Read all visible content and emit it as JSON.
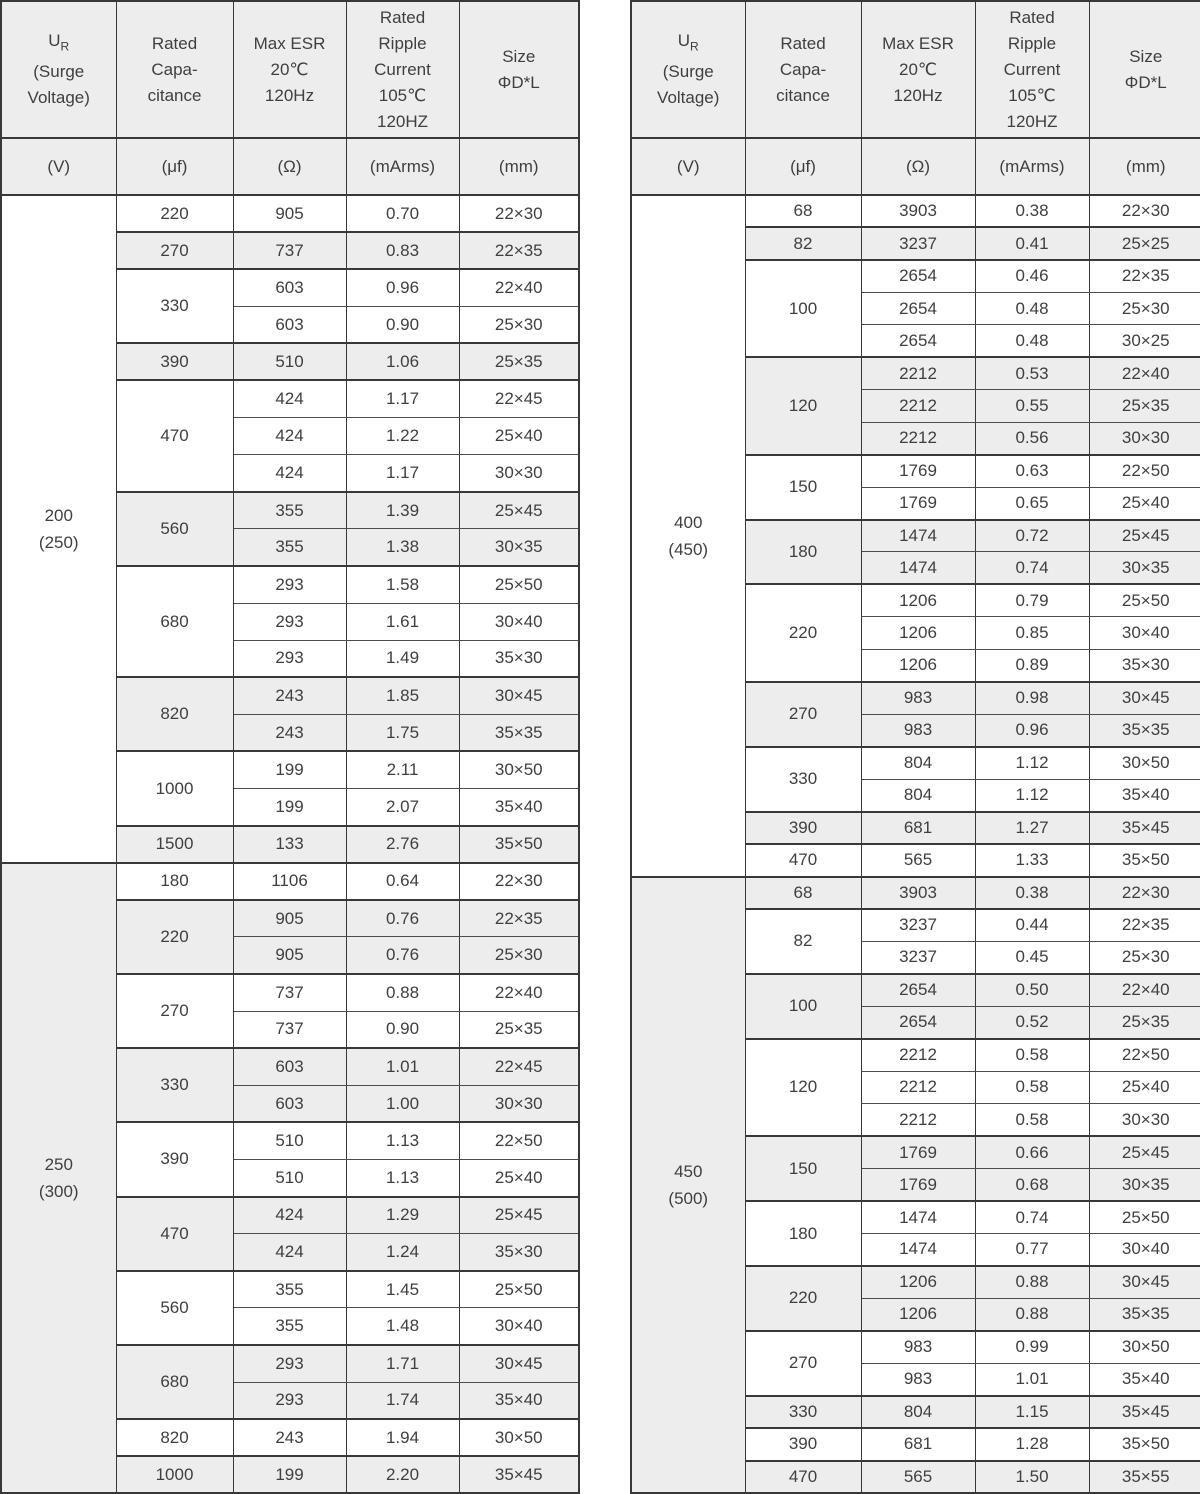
{
  "colors": {
    "stripe": "#ededed",
    "header_bg": "#ededed",
    "border": "#383838",
    "text": "#3f3f3f",
    "row_bg": "#ffffff"
  },
  "columns": [
    {
      "title_rich": {
        "main": "U",
        "sub": "R"
      },
      "title_lines": [
        "(Surge",
        "Voltage)"
      ],
      "unit": "(V)"
    },
    {
      "title_lines": [
        "Rated",
        "Capa-",
        "citance"
      ],
      "unit": "(μf)"
    },
    {
      "title_lines": [
        "Max ESR",
        "20℃",
        "120Hz"
      ],
      "unit": "(Ω)"
    },
    {
      "title_lines": [
        "Rated",
        "Ripple",
        "Current",
        "105℃",
        "120HZ"
      ],
      "unit": "(mArms)"
    },
    {
      "title_lines": [
        "Size",
        "ΦD*L"
      ],
      "unit": "(mm)"
    }
  ],
  "tables": [
    {
      "id": "left",
      "sections": [
        {
          "voltage": "200",
          "surge": "(250)",
          "groups": [
            {
              "cap": "220",
              "rows": [
                {
                  "esr": "905",
                  "ripple": "0.70",
                  "size": "22×30"
                }
              ]
            },
            {
              "cap": "270",
              "rows": [
                {
                  "esr": "737",
                  "ripple": "0.83",
                  "size": "22×35"
                }
              ]
            },
            {
              "cap": "330",
              "rows": [
                {
                  "esr": "603",
                  "ripple": "0.96",
                  "size": "22×40"
                },
                {
                  "esr": "603",
                  "ripple": "0.90",
                  "size": "25×30"
                }
              ]
            },
            {
              "cap": "390",
              "rows": [
                {
                  "esr": "510",
                  "ripple": "1.06",
                  "size": "25×35"
                }
              ]
            },
            {
              "cap": "470",
              "rows": [
                {
                  "esr": "424",
                  "ripple": "1.17",
                  "size": "22×45"
                },
                {
                  "esr": "424",
                  "ripple": "1.22",
                  "size": "25×40"
                },
                {
                  "esr": "424",
                  "ripple": "1.17",
                  "size": "30×30"
                }
              ]
            },
            {
              "cap": "560",
              "rows": [
                {
                  "esr": "355",
                  "ripple": "1.39",
                  "size": "25×45"
                },
                {
                  "esr": "355",
                  "ripple": "1.38",
                  "size": "30×35"
                }
              ]
            },
            {
              "cap": "680",
              "rows": [
                {
                  "esr": "293",
                  "ripple": "1.58",
                  "size": "25×50"
                },
                {
                  "esr": "293",
                  "ripple": "1.61",
                  "size": "30×40"
                },
                {
                  "esr": "293",
                  "ripple": "1.49",
                  "size": "35×30"
                }
              ]
            },
            {
              "cap": "820",
              "rows": [
                {
                  "esr": "243",
                  "ripple": "1.85",
                  "size": "30×45"
                },
                {
                  "esr": "243",
                  "ripple": "1.75",
                  "size": "35×35"
                }
              ]
            },
            {
              "cap": "1000",
              "rows": [
                {
                  "esr": "199",
                  "ripple": "2.11",
                  "size": "30×50"
                },
                {
                  "esr": "199",
                  "ripple": "2.07",
                  "size": "35×40"
                }
              ]
            },
            {
              "cap": "1500",
              "rows": [
                {
                  "esr": "133",
                  "ripple": "2.76",
                  "size": "35×50"
                }
              ]
            }
          ]
        },
        {
          "voltage": "250",
          "surge": "(300)",
          "groups": [
            {
              "cap": "180",
              "rows": [
                {
                  "esr": "1106",
                  "ripple": "0.64",
                  "size": "22×30"
                }
              ]
            },
            {
              "cap": "220",
              "rows": [
                {
                  "esr": "905",
                  "ripple": "0.76",
                  "size": "22×35"
                },
                {
                  "esr": "905",
                  "ripple": "0.76",
                  "size": "25×30"
                }
              ]
            },
            {
              "cap": "270",
              "rows": [
                {
                  "esr": "737",
                  "ripple": "0.88",
                  "size": "22×40"
                },
                {
                  "esr": "737",
                  "ripple": "0.90",
                  "size": "25×35"
                }
              ]
            },
            {
              "cap": "330",
              "rows": [
                {
                  "esr": "603",
                  "ripple": "1.01",
                  "size": "22×45"
                },
                {
                  "esr": "603",
                  "ripple": "1.00",
                  "size": "30×30"
                }
              ]
            },
            {
              "cap": "390",
              "rows": [
                {
                  "esr": "510",
                  "ripple": "1.13",
                  "size": "22×50"
                },
                {
                  "esr": "510",
                  "ripple": "1.13",
                  "size": "25×40"
                }
              ]
            },
            {
              "cap": "470",
              "rows": [
                {
                  "esr": "424",
                  "ripple": "1.29",
                  "size": "25×45"
                },
                {
                  "esr": "424",
                  "ripple": "1.24",
                  "size": "35×30"
                }
              ]
            },
            {
              "cap": "560",
              "rows": [
                {
                  "esr": "355",
                  "ripple": "1.45",
                  "size": "25×50"
                },
                {
                  "esr": "355",
                  "ripple": "1.48",
                  "size": "30×40"
                }
              ]
            },
            {
              "cap": "680",
              "rows": [
                {
                  "esr": "293",
                  "ripple": "1.71",
                  "size": "30×45"
                },
                {
                  "esr": "293",
                  "ripple": "1.74",
                  "size": "35×40"
                }
              ]
            },
            {
              "cap": "820",
              "rows": [
                {
                  "esr": "243",
                  "ripple": "1.94",
                  "size": "30×50"
                }
              ]
            },
            {
              "cap": "1000",
              "rows": [
                {
                  "esr": "199",
                  "ripple": "2.20",
                  "size": "35×45"
                }
              ]
            }
          ]
        }
      ]
    },
    {
      "id": "right",
      "sections": [
        {
          "voltage": "400",
          "surge": "(450)",
          "groups": [
            {
              "cap": "68",
              "rows": [
                {
                  "esr": "3903",
                  "ripple": "0.38",
                  "size": "22×30"
                }
              ]
            },
            {
              "cap": "82",
              "rows": [
                {
                  "esr": "3237",
                  "ripple": "0.41",
                  "size": "25×25"
                }
              ]
            },
            {
              "cap": "100",
              "rows": [
                {
                  "esr": "2654",
                  "ripple": "0.46",
                  "size": "22×35"
                },
                {
                  "esr": "2654",
                  "ripple": "0.48",
                  "size": "25×30"
                },
                {
                  "esr": "2654",
                  "ripple": "0.48",
                  "size": "30×25"
                }
              ]
            },
            {
              "cap": "120",
              "rows": [
                {
                  "esr": "2212",
                  "ripple": "0.53",
                  "size": "22×40"
                },
                {
                  "esr": "2212",
                  "ripple": "0.55",
                  "size": "25×35"
                },
                {
                  "esr": "2212",
                  "ripple": "0.56",
                  "size": "30×30"
                }
              ]
            },
            {
              "cap": "150",
              "rows": [
                {
                  "esr": "1769",
                  "ripple": "0.63",
                  "size": "22×50"
                },
                {
                  "esr": "1769",
                  "ripple": "0.65",
                  "size": "25×40"
                }
              ]
            },
            {
              "cap": "180",
              "rows": [
                {
                  "esr": "1474",
                  "ripple": "0.72",
                  "size": "25×45"
                },
                {
                  "esr": "1474",
                  "ripple": "0.74",
                  "size": "30×35"
                }
              ]
            },
            {
              "cap": "220",
              "rows": [
                {
                  "esr": "1206",
                  "ripple": "0.79",
                  "size": "25×50"
                },
                {
                  "esr": "1206",
                  "ripple": "0.85",
                  "size": "30×40"
                },
                {
                  "esr": "1206",
                  "ripple": "0.89",
                  "size": "35×30"
                }
              ]
            },
            {
              "cap": "270",
              "rows": [
                {
                  "esr": "983",
                  "ripple": "0.98",
                  "size": "30×45"
                },
                {
                  "esr": "983",
                  "ripple": "0.96",
                  "size": "35×35"
                }
              ]
            },
            {
              "cap": "330",
              "rows": [
                {
                  "esr": "804",
                  "ripple": "1.12",
                  "size": "30×50"
                },
                {
                  "esr": "804",
                  "ripple": "1.12",
                  "size": "35×40"
                }
              ]
            },
            {
              "cap": "390",
              "rows": [
                {
                  "esr": "681",
                  "ripple": "1.27",
                  "size": "35×45"
                }
              ]
            },
            {
              "cap": "470",
              "rows": [
                {
                  "esr": "565",
                  "ripple": "1.33",
                  "size": "35×50"
                }
              ]
            }
          ]
        },
        {
          "voltage": "450",
          "surge": "(500)",
          "groups": [
            {
              "cap": "68",
              "rows": [
                {
                  "esr": "3903",
                  "ripple": "0.38",
                  "size": "22×30"
                }
              ]
            },
            {
              "cap": "82",
              "rows": [
                {
                  "esr": "3237",
                  "ripple": "0.44",
                  "size": "22×35"
                },
                {
                  "esr": "3237",
                  "ripple": "0.45",
                  "size": "25×30"
                }
              ]
            },
            {
              "cap": "100",
              "rows": [
                {
                  "esr": "2654",
                  "ripple": "0.50",
                  "size": "22×40"
                },
                {
                  "esr": "2654",
                  "ripple": "0.52",
                  "size": "25×35"
                }
              ]
            },
            {
              "cap": "120",
              "rows": [
                {
                  "esr": "2212",
                  "ripple": "0.58",
                  "size": "22×50"
                },
                {
                  "esr": "2212",
                  "ripple": "0.58",
                  "size": "25×40"
                },
                {
                  "esr": "2212",
                  "ripple": "0.58",
                  "size": "30×30"
                }
              ]
            },
            {
              "cap": "150",
              "rows": [
                {
                  "esr": "1769",
                  "ripple": "0.66",
                  "size": "25×45"
                },
                {
                  "esr": "1769",
                  "ripple": "0.68",
                  "size": "30×35"
                }
              ]
            },
            {
              "cap": "180",
              "rows": [
                {
                  "esr": "1474",
                  "ripple": "0.74",
                  "size": "25×50"
                },
                {
                  "esr": "1474",
                  "ripple": "0.77",
                  "size": "30×40"
                }
              ]
            },
            {
              "cap": "220",
              "rows": [
                {
                  "esr": "1206",
                  "ripple": "0.88",
                  "size": "30×45"
                },
                {
                  "esr": "1206",
                  "ripple": "0.88",
                  "size": "35×35"
                }
              ]
            },
            {
              "cap": "270",
              "rows": [
                {
                  "esr": "983",
                  "ripple": "0.99",
                  "size": "30×50"
                },
                {
                  "esr": "983",
                  "ripple": "1.01",
                  "size": "35×40"
                }
              ]
            },
            {
              "cap": "330",
              "rows": [
                {
                  "esr": "804",
                  "ripple": "1.15",
                  "size": "35×45"
                }
              ]
            },
            {
              "cap": "390",
              "rows": [
                {
                  "esr": "681",
                  "ripple": "1.28",
                  "size": "35×50"
                }
              ]
            },
            {
              "cap": "470",
              "rows": [
                {
                  "esr": "565",
                  "ripple": "1.50",
                  "size": "35×55"
                }
              ]
            }
          ]
        }
      ]
    }
  ]
}
